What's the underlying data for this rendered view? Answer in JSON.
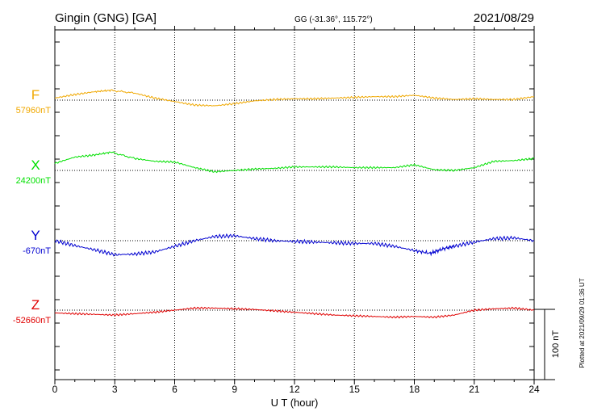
{
  "header": {
    "station": "Gingin (GNG)  [GA]",
    "coords": "GG (-31.36°, 115.72°)",
    "date": "2021/08/29"
  },
  "plotted_note": "Plotted at 2021/09/29 01:36 UT",
  "chart_data": {
    "type": "line",
    "xlabel": "U T (hour)",
    "xlim": [
      0,
      24
    ],
    "xticks": [
      0,
      3,
      6,
      9,
      12,
      15,
      18,
      21,
      24
    ],
    "xtick_labels": [
      "0",
      "3",
      "6",
      "9",
      "12",
      "15",
      "18",
      "21",
      "24"
    ],
    "grid": "dotted vertical lines every 3 hours",
    "scale_bar": "100 nT",
    "series": [
      {
        "name": "F",
        "baseline_label": "57960nT",
        "baseline": 57960,
        "color": "#f0a800",
        "points": [
          [
            0,
            57963
          ],
          [
            1,
            57968
          ],
          [
            2,
            57972
          ],
          [
            2.8,
            57974
          ],
          [
            4,
            57970
          ],
          [
            5,
            57963
          ],
          [
            6,
            57958
          ],
          [
            7,
            57953
          ],
          [
            8,
            57952
          ],
          [
            9,
            57955
          ],
          [
            10,
            57959
          ],
          [
            11,
            57961
          ],
          [
            12,
            57962
          ],
          [
            13,
            57962
          ],
          [
            14,
            57963
          ],
          [
            15,
            57964
          ],
          [
            16,
            57965
          ],
          [
            17,
            57965
          ],
          [
            18,
            57967
          ],
          [
            19,
            57963
          ],
          [
            20,
            57961
          ],
          [
            21,
            57962
          ],
          [
            22,
            57961
          ],
          [
            23,
            57961
          ],
          [
            24,
            57965
          ]
        ]
      },
      {
        "name": "X",
        "baseline_label": "24200nT",
        "baseline": 24200,
        "color": "#00e000",
        "points": [
          [
            0,
            24210
          ],
          [
            1,
            24219
          ],
          [
            2,
            24222
          ],
          [
            2.8,
            24226
          ],
          [
            4,
            24217
          ],
          [
            5,
            24213
          ],
          [
            6,
            24212
          ],
          [
            7,
            24204
          ],
          [
            8,
            24198
          ],
          [
            9,
            24200
          ],
          [
            10,
            24202
          ],
          [
            11,
            24203
          ],
          [
            12,
            24205
          ],
          [
            13,
            24205
          ],
          [
            14,
            24205
          ],
          [
            15,
            24204
          ],
          [
            16,
            24204
          ],
          [
            17,
            24204
          ],
          [
            18,
            24208
          ],
          [
            19,
            24201
          ],
          [
            20,
            24200
          ],
          [
            21,
            24204
          ],
          [
            22,
            24213
          ],
          [
            23,
            24214
          ],
          [
            24,
            24217
          ]
        ]
      },
      {
        "name": "Y",
        "baseline_label": "-670nT",
        "baseline": -670,
        "color": "#0000d0",
        "points": [
          [
            0,
            -670
          ],
          [
            1,
            -677
          ],
          [
            2,
            -683
          ],
          [
            3,
            -690
          ],
          [
            4,
            -689
          ],
          [
            5,
            -686
          ],
          [
            6,
            -678
          ],
          [
            7,
            -670
          ],
          [
            8,
            -664
          ],
          [
            9,
            -663
          ],
          [
            10,
            -667
          ],
          [
            11,
            -670
          ],
          [
            12,
            -671
          ],
          [
            13,
            -672
          ],
          [
            14,
            -673
          ],
          [
            15,
            -674
          ],
          [
            16,
            -674
          ],
          [
            17,
            -678
          ],
          [
            18,
            -684
          ],
          [
            18.8,
            -688
          ],
          [
            19.5,
            -681
          ],
          [
            20,
            -678
          ],
          [
            21,
            -672
          ],
          [
            22,
            -667
          ],
          [
            23,
            -666
          ],
          [
            24,
            -670
          ]
        ]
      },
      {
        "name": "Z",
        "baseline_label": "-52660nT",
        "baseline": -52660,
        "color": "#e00000",
        "points": [
          [
            0,
            -52664
          ],
          [
            1,
            -52665
          ],
          [
            2,
            -52666
          ],
          [
            3,
            -52667
          ],
          [
            4,
            -52665
          ],
          [
            5,
            -52663
          ],
          [
            6,
            -52660
          ],
          [
            7,
            -52657
          ],
          [
            8,
            -52657
          ],
          [
            9,
            -52658
          ],
          [
            10,
            -52659
          ],
          [
            11,
            -52661
          ],
          [
            12,
            -52663
          ],
          [
            13,
            -52665
          ],
          [
            14,
            -52667
          ],
          [
            15,
            -52668
          ],
          [
            16,
            -52669
          ],
          [
            17,
            -52670
          ],
          [
            18,
            -52669
          ],
          [
            19,
            -52670
          ],
          [
            20,
            -52667
          ],
          [
            21,
            -52660
          ],
          [
            22,
            -52658
          ],
          [
            23,
            -52657
          ],
          [
            24,
            -52660
          ]
        ]
      }
    ]
  }
}
